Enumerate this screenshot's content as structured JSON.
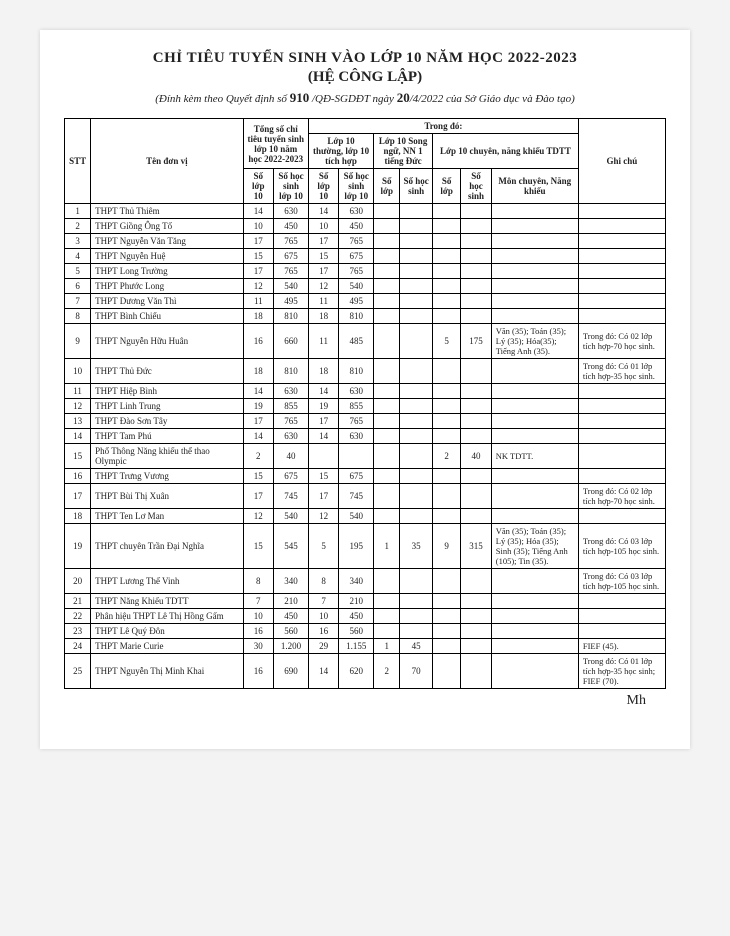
{
  "title1": "CHỈ TIÊU TUYỂN SINH VÀO LỚP 10 NĂM HỌC 2022-2023",
  "title2": "(HỆ CÔNG LẬP)",
  "sub_prefix": "(Đính kèm theo Quyết định số ",
  "sub_hand1": "910",
  "sub_mid1": " /QĐ-SGDĐT ngày ",
  "sub_hand2": "20",
  "sub_mid2": "/4/2022 của Sở Giáo dục và Đào tạo)",
  "headers": {
    "stt": "STT",
    "ten": "Tên đơn vị",
    "tong": "Tổng số chỉ tiêu tuyển sinh lớp 10 năm học 2022-2023",
    "trongdo": "Trong đó:",
    "thuong": "Lớp 10 thường, lớp 10 tích hợp",
    "songngu": "Lớp 10 Song ngữ, NN 1 tiếng Đức",
    "chuyen": "Lớp 10 chuyên, năng khiếu TDTT",
    "ghichu": "Ghi chú",
    "solop10": "Số lớp 10",
    "sohs10": "Số học sinh lớp 10",
    "solop": "Số lớp",
    "sohs": "Số học sinh",
    "mon": "Môn chuyên, Năng khiếu"
  },
  "rows": [
    {
      "stt": "1",
      "ten": "THPT Thủ Thiêm",
      "t_l": "14",
      "t_hs": "630",
      "th_l": "14",
      "th_hs": "630",
      "sn_l": "",
      "sn_hs": "",
      "c_l": "",
      "c_hs": "",
      "mon": "",
      "gc": ""
    },
    {
      "stt": "2",
      "ten": "THPT Giồng Ông Tố",
      "t_l": "10",
      "t_hs": "450",
      "th_l": "10",
      "th_hs": "450",
      "sn_l": "",
      "sn_hs": "",
      "c_l": "",
      "c_hs": "",
      "mon": "",
      "gc": ""
    },
    {
      "stt": "3",
      "ten": "THPT Nguyễn Văn Tăng",
      "t_l": "17",
      "t_hs": "765",
      "th_l": "17",
      "th_hs": "765",
      "sn_l": "",
      "sn_hs": "",
      "c_l": "",
      "c_hs": "",
      "mon": "",
      "gc": ""
    },
    {
      "stt": "4",
      "ten": "THPT Nguyễn Huệ",
      "t_l": "15",
      "t_hs": "675",
      "th_l": "15",
      "th_hs": "675",
      "sn_l": "",
      "sn_hs": "",
      "c_l": "",
      "c_hs": "",
      "mon": "",
      "gc": ""
    },
    {
      "stt": "5",
      "ten": "THPT Long Trường",
      "t_l": "17",
      "t_hs": "765",
      "th_l": "17",
      "th_hs": "765",
      "sn_l": "",
      "sn_hs": "",
      "c_l": "",
      "c_hs": "",
      "mon": "",
      "gc": ""
    },
    {
      "stt": "6",
      "ten": "THPT Phước Long",
      "t_l": "12",
      "t_hs": "540",
      "th_l": "12",
      "th_hs": "540",
      "sn_l": "",
      "sn_hs": "",
      "c_l": "",
      "c_hs": "",
      "mon": "",
      "gc": ""
    },
    {
      "stt": "7",
      "ten": "THPT Dương Văn Thì",
      "t_l": "11",
      "t_hs": "495",
      "th_l": "11",
      "th_hs": "495",
      "sn_l": "",
      "sn_hs": "",
      "c_l": "",
      "c_hs": "",
      "mon": "",
      "gc": ""
    },
    {
      "stt": "8",
      "ten": "THPT Bình Chiểu",
      "t_l": "18",
      "t_hs": "810",
      "th_l": "18",
      "th_hs": "810",
      "sn_l": "",
      "sn_hs": "",
      "c_l": "",
      "c_hs": "",
      "mon": "",
      "gc": ""
    },
    {
      "stt": "9",
      "ten": "THPT Nguyễn Hữu Huân",
      "t_l": "16",
      "t_hs": "660",
      "th_l": "11",
      "th_hs": "485",
      "sn_l": "",
      "sn_hs": "",
      "c_l": "5",
      "c_hs": "175",
      "mon": "Văn (35); Toán (35); Lý (35); Hóa(35); Tiếng Anh (35).",
      "gc": "Trong đó: Có 02 lớp tích hợp-70 học sinh."
    },
    {
      "stt": "10",
      "ten": "THPT Thủ Đức",
      "t_l": "18",
      "t_hs": "810",
      "th_l": "18",
      "th_hs": "810",
      "sn_l": "",
      "sn_hs": "",
      "c_l": "",
      "c_hs": "",
      "mon": "",
      "gc": "Trong đó: Có 01 lớp tích hợp-35 học sinh."
    },
    {
      "stt": "11",
      "ten": "THPT Hiệp Bình",
      "t_l": "14",
      "t_hs": "630",
      "th_l": "14",
      "th_hs": "630",
      "sn_l": "",
      "sn_hs": "",
      "c_l": "",
      "c_hs": "",
      "mon": "",
      "gc": ""
    },
    {
      "stt": "12",
      "ten": "THPT Linh Trung",
      "t_l": "19",
      "t_hs": "855",
      "th_l": "19",
      "th_hs": "855",
      "sn_l": "",
      "sn_hs": "",
      "c_l": "",
      "c_hs": "",
      "mon": "",
      "gc": ""
    },
    {
      "stt": "13",
      "ten": "THPT Đào Sơn Tây",
      "t_l": "17",
      "t_hs": "765",
      "th_l": "17",
      "th_hs": "765",
      "sn_l": "",
      "sn_hs": "",
      "c_l": "",
      "c_hs": "",
      "mon": "",
      "gc": ""
    },
    {
      "stt": "14",
      "ten": "THPT Tam Phú",
      "t_l": "14",
      "t_hs": "630",
      "th_l": "14",
      "th_hs": "630",
      "sn_l": "",
      "sn_hs": "",
      "c_l": "",
      "c_hs": "",
      "mon": "",
      "gc": ""
    },
    {
      "stt": "15",
      "ten": "Phổ Thông Năng khiếu thể thao Olympic",
      "t_l": "2",
      "t_hs": "40",
      "th_l": "",
      "th_hs": "",
      "sn_l": "",
      "sn_hs": "",
      "c_l": "2",
      "c_hs": "40",
      "mon": "NK TDTT.",
      "gc": ""
    },
    {
      "stt": "16",
      "ten": "THPT Trưng Vương",
      "t_l": "15",
      "t_hs": "675",
      "th_l": "15",
      "th_hs": "675",
      "sn_l": "",
      "sn_hs": "",
      "c_l": "",
      "c_hs": "",
      "mon": "",
      "gc": ""
    },
    {
      "stt": "17",
      "ten": "THPT Bùi Thị Xuân",
      "t_l": "17",
      "t_hs": "745",
      "th_l": "17",
      "th_hs": "745",
      "sn_l": "",
      "sn_hs": "",
      "c_l": "",
      "c_hs": "",
      "mon": "",
      "gc": "Trong đó: Có 02 lớp tích hợp-70 học sinh."
    },
    {
      "stt": "18",
      "ten": "THPT Ten Lơ Man",
      "t_l": "12",
      "t_hs": "540",
      "th_l": "12",
      "th_hs": "540",
      "sn_l": "",
      "sn_hs": "",
      "c_l": "",
      "c_hs": "",
      "mon": "",
      "gc": ""
    },
    {
      "stt": "19",
      "ten": "THPT chuyên Trần Đại Nghĩa",
      "t_l": "15",
      "t_hs": "545",
      "th_l": "5",
      "th_hs": "195",
      "sn_l": "1",
      "sn_hs": "35",
      "c_l": "9",
      "c_hs": "315",
      "mon": "Văn (35); Toán (35); Lý (35); Hóa (35); Sinh (35); Tiếng Anh (105); Tin (35).",
      "gc": "Trong đó: Có 03 lớp tích hợp-105 học sinh."
    },
    {
      "stt": "20",
      "ten": "THPT Lương Thế Vinh",
      "t_l": "8",
      "t_hs": "340",
      "th_l": "8",
      "th_hs": "340",
      "sn_l": "",
      "sn_hs": "",
      "c_l": "",
      "c_hs": "",
      "mon": "",
      "gc": "Trong đó: Có 03 lớp tích hợp-105 học sinh."
    },
    {
      "stt": "21",
      "ten": "THPT Năng Khiếu TDTT",
      "t_l": "7",
      "t_hs": "210",
      "th_l": "7",
      "th_hs": "210",
      "sn_l": "",
      "sn_hs": "",
      "c_l": "",
      "c_hs": "",
      "mon": "",
      "gc": ""
    },
    {
      "stt": "22",
      "ten": "Phân hiệu THPT Lê Thị Hồng Gấm",
      "t_l": "10",
      "t_hs": "450",
      "th_l": "10",
      "th_hs": "450",
      "sn_l": "",
      "sn_hs": "",
      "c_l": "",
      "c_hs": "",
      "mon": "",
      "gc": ""
    },
    {
      "stt": "23",
      "ten": "THPT Lê Quý Đôn",
      "t_l": "16",
      "t_hs": "560",
      "th_l": "16",
      "th_hs": "560",
      "sn_l": "",
      "sn_hs": "",
      "c_l": "",
      "c_hs": "",
      "mon": "",
      "gc": ""
    },
    {
      "stt": "24",
      "ten": "THPT Marie Curie",
      "t_l": "30",
      "t_hs": "1.200",
      "th_l": "29",
      "th_hs": "1.155",
      "sn_l": "1",
      "sn_hs": "45",
      "c_l": "",
      "c_hs": "",
      "mon": "",
      "gc": "FIEF (45)."
    },
    {
      "stt": "25",
      "ten": "THPT Nguyễn Thị Minh Khai",
      "t_l": "16",
      "t_hs": "690",
      "th_l": "14",
      "th_hs": "620",
      "sn_l": "2",
      "sn_hs": "70",
      "c_l": "",
      "c_hs": "",
      "mon": "",
      "gc": "Trong đó: Có 01 lớp tích hợp-35 học sinh; FIEF (70)."
    }
  ],
  "signature": "Mh"
}
